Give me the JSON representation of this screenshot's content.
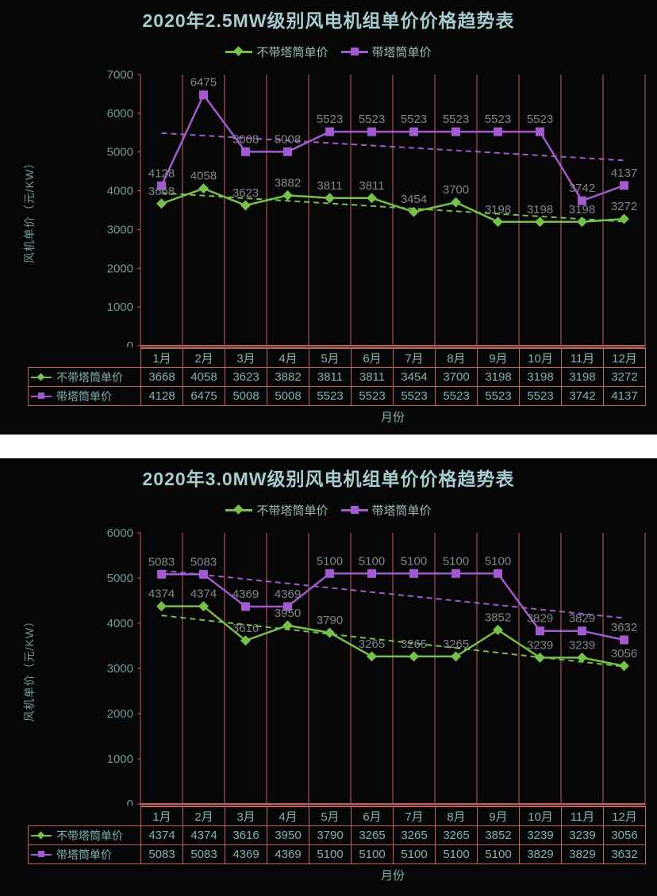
{
  "colors": {
    "page_background": "#ffffff",
    "panel_background": "#060606",
    "title_text": "#a7ccd0",
    "legend_text": "#9dbcbc",
    "axis_text": "#6f9b9b",
    "table_text": "#84b1b1",
    "data_label": "#83878b",
    "grid_line": "#c4635d",
    "series_green": "#77c04d",
    "series_purple": "#a35ad0"
  },
  "chart_data": [
    {
      "type": "line",
      "title": "2020年2.5MW级别风电机组单价价格趋势表",
      "xlabel": "月份",
      "ylabel": "风机单价（元/KW）",
      "categories": [
        "1月",
        "2月",
        "3月",
        "4月",
        "5月",
        "6月",
        "7月",
        "8月",
        "9月",
        "10月",
        "11月",
        "12月"
      ],
      "series": [
        {
          "id": "no-tower",
          "name": "不带塔筒单价",
          "marker": "diamond",
          "color_key": "series_green",
          "values": [
            3668,
            4058,
            3623,
            3882,
            3811,
            3811,
            3454,
            3700,
            3198,
            3198,
            3198,
            3272
          ]
        },
        {
          "id": "with-tower",
          "name": "带塔筒单价",
          "marker": "square",
          "color_key": "series_purple",
          "values": [
            4128,
            6475,
            5008,
            5008,
            5523,
            5523,
            5523,
            5523,
            5523,
            5523,
            3742,
            4137
          ]
        }
      ],
      "trendlines": "linear-dashed-per-series",
      "data_labels": true,
      "legend_position": "top",
      "grid": "vertical",
      "ylim": [
        0,
        7000
      ],
      "yticks": [
        0,
        1000,
        2000,
        3000,
        4000,
        5000,
        6000,
        7000
      ]
    },
    {
      "type": "line",
      "title": "2020年3.0MW级别风电机组单价价格趋势表",
      "xlabel": "月份",
      "ylabel": "风机单价（元/KW）",
      "categories": [
        "1月",
        "2月",
        "3月",
        "4月",
        "5月",
        "6月",
        "7月",
        "8月",
        "9月",
        "10月",
        "11月",
        "12月"
      ],
      "series": [
        {
          "id": "no-tower",
          "name": "不带塔筒单价",
          "marker": "diamond",
          "color_key": "series_green",
          "values": [
            4374,
            4374,
            3616,
            3950,
            3790,
            3265,
            3265,
            3265,
            3852,
            3239,
            3239,
            3056
          ]
        },
        {
          "id": "with-tower",
          "name": "带塔筒单价",
          "marker": "square",
          "color_key": "series_purple",
          "values": [
            5083,
            5083,
            4369,
            4369,
            5100,
            5100,
            5100,
            5100,
            5100,
            3829,
            3829,
            3632
          ]
        }
      ],
      "trendlines": "linear-dashed-per-series",
      "data_labels": true,
      "legend_position": "top",
      "grid": "vertical",
      "ylim": [
        0,
        6000
      ],
      "yticks": [
        0,
        1000,
        2000,
        3000,
        4000,
        5000,
        6000
      ]
    }
  ]
}
